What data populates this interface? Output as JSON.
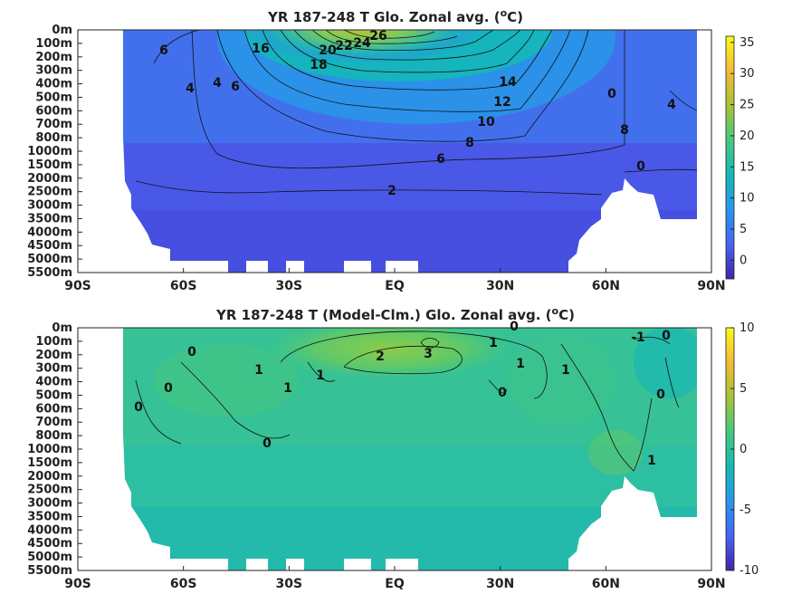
{
  "chart_data": [
    {
      "type": "heatmap",
      "title": "YR 187-248 T Glo. Zonal avg. (",
      "title_sup": "o",
      "title_tail": "C)",
      "x_ticks": [
        "90S",
        "60S",
        "30S",
        "EQ",
        "30N",
        "60N",
        "90N"
      ],
      "x_range": [
        -90,
        90
      ],
      "y_ticks": [
        "0m",
        "100m",
        "200m",
        "300m",
        "400m",
        "500m",
        "600m",
        "700m",
        "800m",
        "1000m",
        "1500m",
        "2000m",
        "2500m",
        "3000m",
        "3500m",
        "4000m",
        "4500m",
        "5000m",
        "5500m"
      ],
      "colorbar": {
        "ticks": [
          "35",
          "30",
          "25",
          "20",
          "15",
          "10",
          "5",
          "0"
        ],
        "range": [
          -3,
          36
        ]
      },
      "contour_labels": [
        "26",
        "24",
        "22",
        "20",
        "18",
        "16",
        "14",
        "12",
        "10",
        "8",
        "6",
        "4",
        "2",
        "0"
      ],
      "colormap": [
        "#3e26a8",
        "#4764f5",
        "#2797eb",
        "#14b9b4",
        "#47c87f",
        "#a6c336",
        "#f5ba37",
        "#f9fb15"
      ]
    },
    {
      "type": "heatmap",
      "title": "YR 187-248 T (Model-Clm.) Glo. Zonal avg. (",
      "title_sup": "o",
      "title_tail": "C)",
      "x_ticks": [
        "90S",
        "60S",
        "30S",
        "EQ",
        "30N",
        "60N",
        "90N"
      ],
      "x_range": [
        -90,
        90
      ],
      "y_ticks": [
        "0m",
        "100m",
        "200m",
        "300m",
        "400m",
        "500m",
        "600m",
        "700m",
        "800m",
        "1000m",
        "1500m",
        "2000m",
        "2500m",
        "3000m",
        "3500m",
        "4000m",
        "4500m",
        "5000m",
        "5500m"
      ],
      "colorbar": {
        "ticks": [
          "10",
          "5",
          "0",
          "-5",
          "-10"
        ],
        "range": [
          -10,
          10
        ]
      },
      "contour_labels": [
        "3",
        "2",
        "1",
        "0",
        "-1"
      ],
      "colormap": [
        "#3e26a8",
        "#4764f5",
        "#2797eb",
        "#14b9b4",
        "#47c87f",
        "#a6c336",
        "#f5ba37",
        "#f9fb15"
      ]
    }
  ]
}
